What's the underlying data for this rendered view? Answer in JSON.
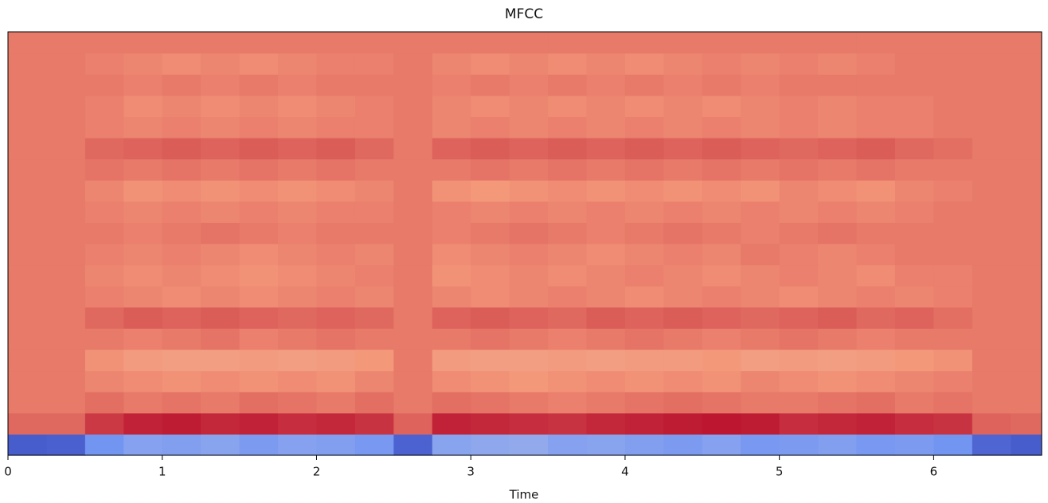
{
  "chart_data": {
    "type": "heatmap",
    "title": "MFCC",
    "x_label": "Time",
    "x": [
      0,
      0.25,
      0.5,
      0.75,
      1,
      1.25,
      1.5,
      1.75,
      2,
      2.25,
      2.5,
      2.75,
      3,
      3.25,
      3.5,
      3.75,
      4,
      4.25,
      4.5,
      4.75,
      5,
      5.25,
      5.5,
      5.75,
      6,
      6.25,
      6.5
    ],
    "xlim": [
      0,
      6.7
    ],
    "xticks": [
      0,
      1,
      2,
      3,
      4,
      5,
      6
    ],
    "colormap": "coolwarm",
    "zlim": [
      -250,
      250
    ],
    "z": [
      [
        -220,
        -215,
        -120,
        -100,
        -105,
        -95,
        -110,
        -100,
        -105,
        -115,
        -210,
        -95,
        -90,
        -85,
        -100,
        -95,
        -105,
        -110,
        -100,
        -115,
        -110,
        -105,
        -115,
        -110,
        -120,
        -205,
        -220
      ],
      [
        165,
        165,
        205,
        225,
        230,
        220,
        225,
        215,
        220,
        210,
        170,
        225,
        220,
        215,
        210,
        220,
        225,
        230,
        235,
        230,
        215,
        220,
        225,
        215,
        210,
        170,
        165
      ],
      [
        150,
        150,
        160,
        150,
        155,
        150,
        160,
        155,
        150,
        160,
        150,
        160,
        155,
        150,
        145,
        150,
        155,
        160,
        155,
        150,
        150,
        155,
        160,
        150,
        155,
        150,
        150
      ],
      [
        150,
        150,
        140,
        135,
        130,
        135,
        130,
        135,
        130,
        140,
        150,
        135,
        130,
        125,
        130,
        135,
        130,
        135,
        130,
        140,
        135,
        130,
        135,
        140,
        145,
        150,
        150
      ],
      [
        150,
        150,
        130,
        120,
        115,
        115,
        120,
        115,
        120,
        125,
        150,
        120,
        115,
        115,
        120,
        115,
        120,
        120,
        125,
        115,
        120,
        115,
        120,
        125,
        130,
        150,
        150
      ],
      [
        150,
        150,
        150,
        145,
        150,
        155,
        145,
        150,
        155,
        150,
        150,
        150,
        155,
        150,
        145,
        150,
        155,
        150,
        145,
        150,
        155,
        150,
        145,
        150,
        150,
        150,
        150
      ],
      [
        150,
        150,
        165,
        175,
        170,
        175,
        170,
        165,
        170,
        165,
        150,
        170,
        175,
        170,
        165,
        175,
        170,
        175,
        170,
        165,
        170,
        175,
        165,
        170,
        160,
        150,
        150
      ],
      [
        150,
        150,
        145,
        140,
        135,
        140,
        135,
        140,
        145,
        140,
        150,
        140,
        135,
        140,
        145,
        140,
        135,
        140,
        145,
        140,
        135,
        140,
        145,
        140,
        145,
        150,
        150
      ],
      [
        150,
        150,
        140,
        135,
        140,
        135,
        130,
        135,
        140,
        145,
        150,
        130,
        135,
        140,
        135,
        140,
        145,
        140,
        135,
        140,
        145,
        140,
        135,
        145,
        145,
        150,
        150
      ],
      [
        150,
        150,
        145,
        140,
        145,
        140,
        135,
        140,
        145,
        140,
        150,
        135,
        140,
        145,
        140,
        135,
        140,
        145,
        140,
        150,
        145,
        140,
        145,
        150,
        150,
        150,
        150
      ],
      [
        150,
        150,
        150,
        145,
        150,
        155,
        150,
        145,
        150,
        150,
        150,
        145,
        150,
        155,
        150,
        145,
        150,
        155,
        150,
        145,
        150,
        155,
        150,
        150,
        150,
        150,
        150
      ],
      [
        150,
        150,
        145,
        140,
        145,
        140,
        145,
        140,
        145,
        145,
        150,
        145,
        140,
        145,
        140,
        145,
        140,
        145,
        140,
        145,
        140,
        145,
        140,
        145,
        150,
        150,
        150
      ],
      [
        150,
        150,
        140,
        130,
        135,
        130,
        135,
        130,
        135,
        140,
        150,
        130,
        125,
        130,
        135,
        130,
        135,
        130,
        135,
        130,
        140,
        135,
        130,
        140,
        145,
        150,
        150
      ],
      [
        150,
        150,
        155,
        150,
        155,
        150,
        155,
        150,
        155,
        150,
        150,
        150,
        155,
        150,
        155,
        150,
        155,
        150,
        155,
        150,
        155,
        150,
        155,
        150,
        150,
        150,
        150
      ],
      [
        150,
        150,
        165,
        170,
        175,
        170,
        175,
        170,
        175,
        165,
        150,
        170,
        175,
        170,
        175,
        170,
        175,
        170,
        175,
        170,
        165,
        170,
        175,
        165,
        160,
        150,
        150
      ],
      [
        150,
        150,
        145,
        140,
        145,
        140,
        145,
        140,
        145,
        145,
        150,
        140,
        145,
        140,
        145,
        140,
        145,
        140,
        145,
        140,
        145,
        140,
        145,
        145,
        150,
        150,
        150
      ],
      [
        150,
        150,
        145,
        135,
        140,
        135,
        140,
        135,
        140,
        145,
        150,
        140,
        135,
        140,
        135,
        140,
        135,
        140,
        135,
        140,
        145,
        140,
        145,
        145,
        150,
        150,
        150
      ],
      [
        150,
        150,
        150,
        145,
        150,
        145,
        150,
        145,
        150,
        150,
        150,
        145,
        150,
        145,
        150,
        145,
        150,
        145,
        150,
        145,
        150,
        150,
        150,
        150,
        150,
        150,
        150
      ],
      [
        150,
        150,
        145,
        140,
        135,
        140,
        135,
        140,
        145,
        145,
        150,
        140,
        135,
        140,
        135,
        140,
        135,
        140,
        145,
        140,
        145,
        140,
        145,
        150,
        150,
        150,
        150
      ],
      [
        150,
        150,
        150,
        150,
        150,
        150,
        150,
        150,
        150,
        150,
        150,
        150,
        150,
        150,
        150,
        150,
        150,
        150,
        150,
        150,
        150,
        150,
        150,
        150,
        150,
        150,
        150
      ]
    ]
  }
}
